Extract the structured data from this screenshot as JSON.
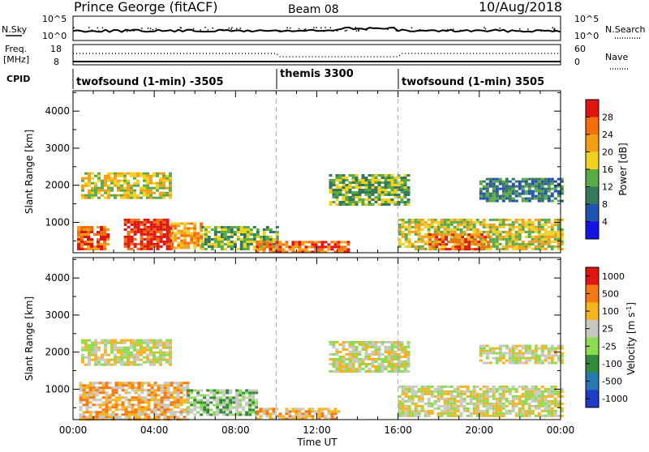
{
  "header": {
    "title": "Prince George (fitACF)",
    "beam": "Beam 08",
    "date": "10/Aug/2018"
  },
  "noise_panel": {
    "left_label": "N.Sky",
    "left_ticks": [
      "10^5",
      "10^0"
    ],
    "right_ticks": [
      "10^5",
      "10^0"
    ],
    "right_label": "N.Search"
  },
  "freq_panel": {
    "left_label_1": "Freq.",
    "left_label_2": "[MHz]",
    "left_ticks": [
      "18",
      "8"
    ],
    "right_ticks": [
      "60",
      "0"
    ],
    "right_label": "Nave"
  },
  "cpid_panel": {
    "label": "CPID",
    "segments": [
      {
        "label": "twofsound (1-min) -3505",
        "start_hour": 0,
        "end_hour": 10
      },
      {
        "label": "themis 3300",
        "start_hour": 10,
        "end_hour": 16
      },
      {
        "label": "twofsound (1-min) 3505",
        "start_hour": 16,
        "end_hour": 24
      }
    ]
  },
  "x_axis": {
    "label": "Time UT",
    "ticks": [
      "00:00",
      "04:00",
      "08:00",
      "12:00",
      "16:00",
      "20:00",
      "00:00"
    ]
  },
  "chart_data": [
    {
      "type": "heatmap",
      "title": "",
      "xlabel": "Time UT",
      "ylabel": "Slant Range [km]",
      "xlim_hours": [
        0,
        24
      ],
      "ylim_km": [
        180,
        4550
      ],
      "yticks": [
        "1000",
        "2000",
        "3000",
        "4000"
      ],
      "colorbar": {
        "label": "Power [dB]",
        "ticks": [
          "4",
          "8",
          "12",
          "16",
          "20",
          "24",
          "28"
        ],
        "colors": [
          "#1414e6",
          "#2152b4",
          "#37785a",
          "#5aaa46",
          "#f0d21e",
          "#f5a014",
          "#f56e0a",
          "#e1140f"
        ]
      },
      "regions": [
        {
          "x": [
            0.4,
            4.8
          ],
          "y": [
            1650,
            2350
          ],
          "level": 4
        },
        {
          "x": [
            0.2,
            1.7
          ],
          "y": [
            300,
            900
          ],
          "level": 6
        },
        {
          "x": [
            2.5,
            4.8
          ],
          "y": [
            300,
            1100
          ],
          "level": 7
        },
        {
          "x": [
            4.8,
            6.3
          ],
          "y": [
            300,
            1000
          ],
          "level": 5
        },
        {
          "x": [
            6.3,
            10.0
          ],
          "y": [
            300,
            900
          ],
          "level": 3
        },
        {
          "x": [
            9.0,
            13.5
          ],
          "y": [
            200,
            500
          ],
          "level": 6
        },
        {
          "x": [
            12.6,
            16.5
          ],
          "y": [
            1500,
            2300
          ],
          "level": 3
        },
        {
          "x": [
            16.0,
            24.0
          ],
          "y": [
            250,
            1100
          ],
          "level": 4
        },
        {
          "x": [
            17.5,
            20.5
          ],
          "y": [
            300,
            700
          ],
          "level": 6
        },
        {
          "x": [
            20.0,
            24.0
          ],
          "y": [
            1600,
            2200
          ],
          "level": 2
        }
      ]
    },
    {
      "type": "heatmap",
      "title": "",
      "xlabel": "Time UT",
      "ylabel": "Slant Range [km]",
      "xlim_hours": [
        0,
        24
      ],
      "ylim_km": [
        180,
        4550
      ],
      "yticks": [
        "1000",
        "2000",
        "3000",
        "4000"
      ],
      "colorbar": {
        "label": "Velocity [m s^-1]",
        "ticks": [
          "1000",
          "500",
          "100",
          "25",
          "-25",
          "-100",
          "-500",
          "-1000"
        ],
        "colors": [
          "#1e3cc8",
          "#2878b4",
          "#328c3c",
          "#8cdc50",
          "#c8c8c0",
          "#f5b41e",
          "#f57814",
          "#e1140f"
        ]
      },
      "regions": [
        {
          "x": [
            0.4,
            4.8
          ],
          "y": [
            1650,
            2350
          ],
          "level": 4
        },
        {
          "x": [
            0.3,
            5.6
          ],
          "y": [
            200,
            1200
          ],
          "level": 5
        },
        {
          "x": [
            5.6,
            9.0
          ],
          "y": [
            300,
            1000
          ],
          "level": 3
        },
        {
          "x": [
            9.0,
            13.0
          ],
          "y": [
            200,
            500
          ],
          "level": 5
        },
        {
          "x": [
            12.6,
            16.5
          ],
          "y": [
            1500,
            2300
          ],
          "level": 4
        },
        {
          "x": [
            16.0,
            24.0
          ],
          "y": [
            300,
            1100
          ],
          "level": 4
        },
        {
          "x": [
            20.0,
            24.0
          ],
          "y": [
            1700,
            2200
          ],
          "level": 4
        }
      ]
    }
  ]
}
